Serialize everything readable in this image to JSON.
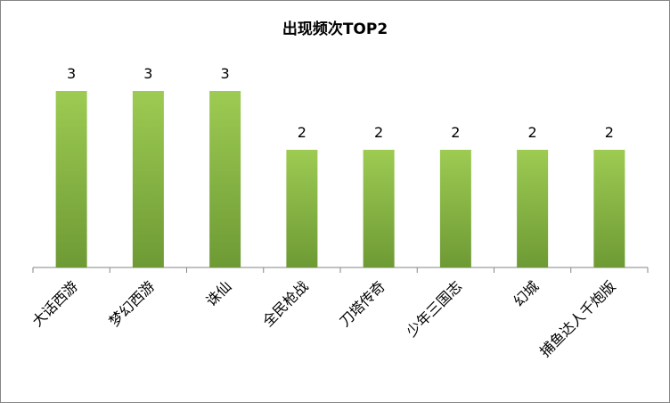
{
  "chart_data": {
    "type": "bar",
    "title": "出现频次TOP2",
    "categories": [
      "大话西游",
      "梦幻西游",
      "诛仙",
      "全民枪战",
      "刀塔传奇",
      "少年三国志",
      "幻城",
      "捕鱼达人千炮版"
    ],
    "values": [
      3,
      3,
      3,
      2,
      2,
      2,
      2,
      2
    ],
    "color": "#8cb847",
    "ylim": [
      0,
      4
    ]
  }
}
